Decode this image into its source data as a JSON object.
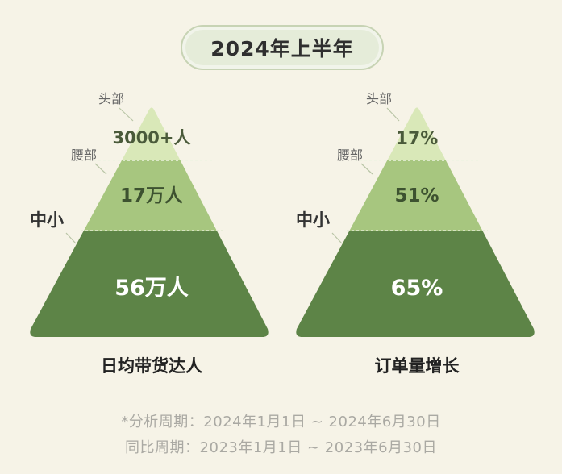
{
  "title": "2024年上半年",
  "pyramids": [
    {
      "caption": "日均带货达人",
      "tiers": [
        {
          "label": "头部",
          "value": "3000+人"
        },
        {
          "label": "腰部",
          "value": "17万人"
        },
        {
          "label": "中小",
          "value": "56万人"
        }
      ]
    },
    {
      "caption": "订单量增长",
      "tiers": [
        {
          "label": "头部",
          "value": "17%"
        },
        {
          "label": "腰部",
          "value": "51%"
        },
        {
          "label": "中小",
          "value": "65%"
        }
      ]
    }
  ],
  "notes": {
    "analysis_period": "*分析周期：2024年1月1日 ~ 2024年6月30日",
    "comparison_period": "同比周期：2023年1月1日 ~ 2023年6月30日"
  },
  "colors": {
    "top": "#d9e8b8",
    "middle": "#a7c67f",
    "bottom": "#5d8447",
    "background": "#f6f3e7"
  }
}
